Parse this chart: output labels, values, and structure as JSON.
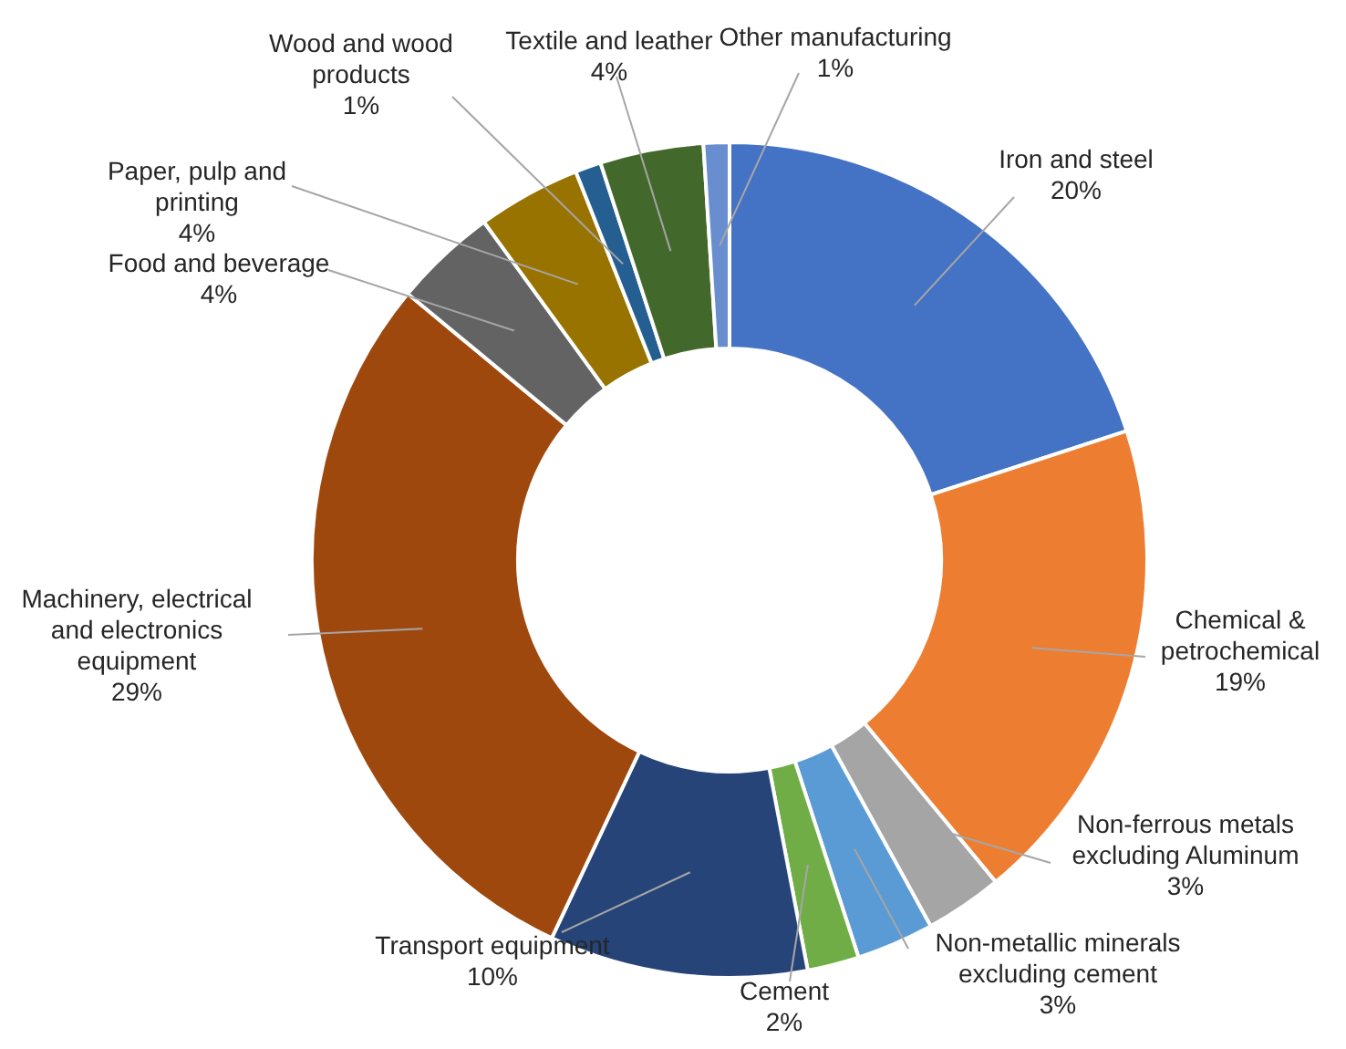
{
  "chart_data": {
    "type": "donut",
    "categories": [
      "Iron and steel",
      "Chemical & petrochemical",
      "Non-ferrous metals excluding Aluminum",
      "Non-metallic minerals excluding cement",
      "Cement",
      "Transport equipment",
      "Machinery, electrical and electronics equipment",
      "Food and beverage",
      "Paper, pulp and printing",
      "Wood and wood products",
      "Textile and leather",
      "Other manufacturing"
    ],
    "values": [
      20,
      19,
      3,
      3,
      2,
      10,
      29,
      4,
      4,
      1,
      4,
      1
    ],
    "colors": [
      "#4472c4",
      "#ed7d31",
      "#a5a5a5",
      "#5b9bd5",
      "#70ad47",
      "#264478",
      "#9e480e",
      "#636363",
      "#997300",
      "#255e91",
      "#43682b",
      "#698ed0"
    ],
    "value_labels": [
      "20%",
      "19%",
      "3%",
      "3%",
      "2%",
      "10%",
      "29%",
      "4%",
      "4%",
      "1%",
      "4%",
      "1%"
    ]
  }
}
